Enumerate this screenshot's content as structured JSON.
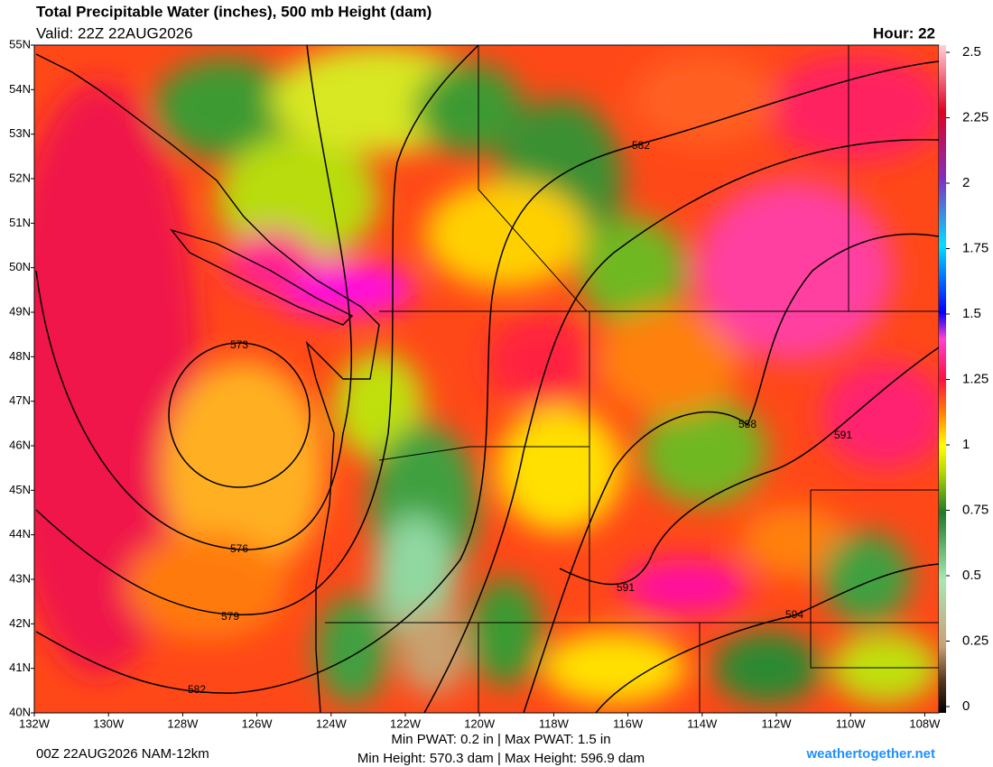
{
  "header": {
    "title": "Total Precipitable Water (inches), 500 mb Height (dam)",
    "valid": "Valid: 22Z 22AUG2026",
    "hour": "Hour: 22"
  },
  "map": {
    "lat_labels": [
      "55N",
      "54N",
      "53N",
      "52N",
      "51N",
      "50N",
      "49N",
      "48N",
      "47N",
      "46N",
      "45N",
      "44N",
      "43N",
      "42N",
      "41N",
      "40N"
    ],
    "lon_labels": [
      "132W",
      "130W",
      "128W",
      "126W",
      "124W",
      "122W",
      "120W",
      "118W",
      "116W",
      "114W",
      "112W",
      "110W",
      "108W"
    ],
    "contour_labels": [
      573,
      576,
      579,
      582,
      582,
      588,
      591,
      591,
      594
    ]
  },
  "colorbar": {
    "range": [
      0,
      2.5
    ],
    "ticks": [
      0,
      0.25,
      0.5,
      0.75,
      1,
      1.25,
      1.5,
      1.75,
      2,
      2.25,
      2.5
    ]
  },
  "footer": {
    "run": "00Z 22AUG2026 NAM-12km",
    "pwat": "Min PWAT:   0.2 in | Max PWAT:   1.5 in",
    "height": "Min Height: 570.3 dam | Max Height: 596.9 dam",
    "site": "weathertogether.net"
  }
}
